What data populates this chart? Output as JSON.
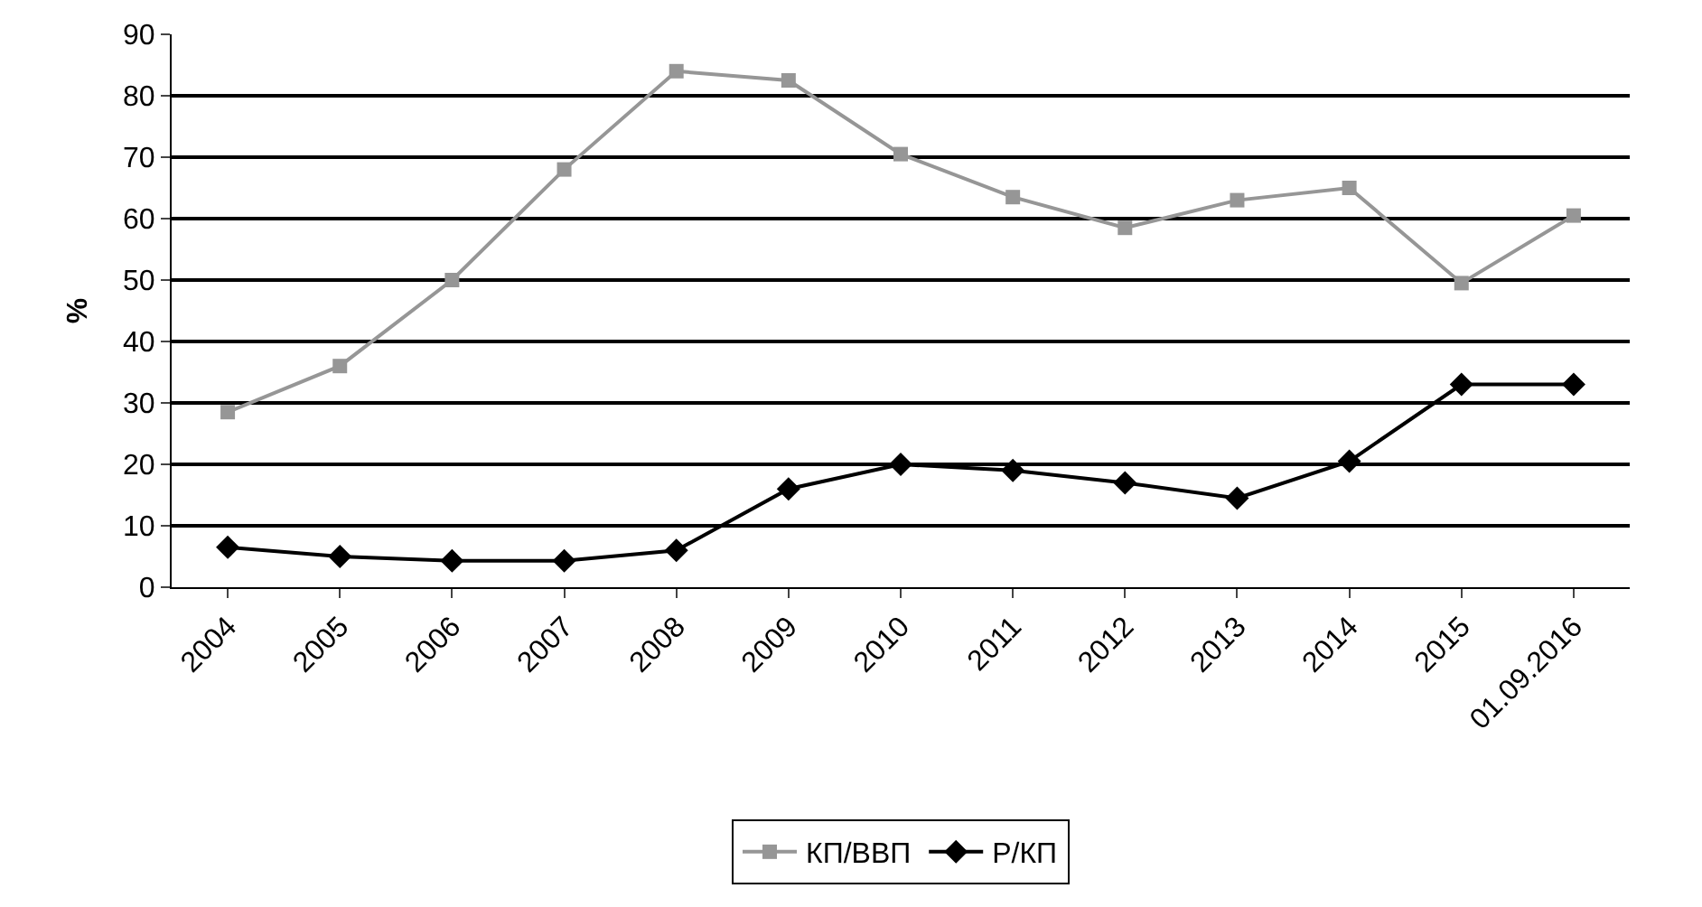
{
  "chart_data": {
    "type": "line",
    "ylabel": "%",
    "categories": [
      "2004",
      "2005",
      "2006",
      "2007",
      "2008",
      "2009",
      "2010",
      "2011",
      "2012",
      "2013",
      "2014",
      "2015",
      "01.09.2016"
    ],
    "series": [
      {
        "name": "КП/ВВП",
        "color": "#969696",
        "marker": "square",
        "values": [
          28.5,
          36,
          50,
          68,
          84,
          82.5,
          70.5,
          63.5,
          58.5,
          63,
          65,
          49.5,
          60.5
        ]
      },
      {
        "name": "Р/КП",
        "color": "#000000",
        "marker": "diamond",
        "values": [
          6.5,
          5,
          4.3,
          4.3,
          6,
          16,
          20,
          19,
          17,
          14.5,
          20.5,
          33,
          33
        ]
      }
    ],
    "ylim": [
      0,
      90
    ],
    "yticks": [
      0,
      10,
      20,
      30,
      40,
      50,
      60,
      70,
      80,
      90
    ],
    "grid": "y",
    "legend": "bottom"
  }
}
